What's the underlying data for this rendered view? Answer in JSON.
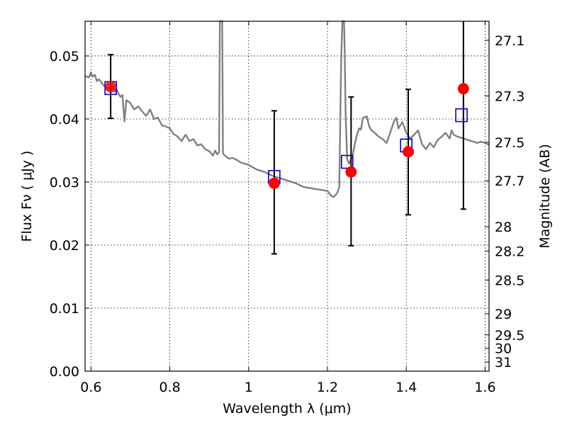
{
  "chart_data": {
    "type": "scatter",
    "xlabel": "Wavelength  λ (μm)",
    "ylabel": "Flux  Fν  ( μJy )",
    "ylabel_right": "Magnitude (AB)",
    "xlim": [
      0.585,
      1.61
    ],
    "ylim": [
      0.0,
      0.0555
    ],
    "grid": true,
    "x_ticks": [
      {
        "value": 0.6,
        "label": "0.6"
      },
      {
        "value": 0.8,
        "label": "0.8"
      },
      {
        "value": 1.0,
        "label": "1"
      },
      {
        "value": 1.2,
        "label": "1.2"
      },
      {
        "value": 1.4,
        "label": "1.4"
      },
      {
        "value": 1.6,
        "label": "1.6"
      }
    ],
    "y_ticks": [
      {
        "value": 0.0,
        "label": "0.00"
      },
      {
        "value": 0.01,
        "label": "0.01"
      },
      {
        "value": 0.02,
        "label": "0.02"
      },
      {
        "value": 0.03,
        "label": "0.03"
      },
      {
        "value": 0.04,
        "label": "0.04"
      },
      {
        "value": 0.05,
        "label": "0.05"
      }
    ],
    "mag_ticks": [
      {
        "mag": 27.1,
        "label": "27.1"
      },
      {
        "mag": 27.3,
        "label": "27.3"
      },
      {
        "mag": 27.5,
        "label": "27.5"
      },
      {
        "mag": 27.7,
        "label": "27.7"
      },
      {
        "mag": 28.0,
        "label": "28"
      },
      {
        "mag": 28.2,
        "label": "28.2"
      },
      {
        "mag": 28.5,
        "label": "28.5"
      },
      {
        "mag": 29.0,
        "label": "29"
      },
      {
        "mag": 29.5,
        "label": "29.5"
      },
      {
        "mag": 30.0,
        "label": "30"
      },
      {
        "mag": 31.0,
        "label": "31"
      }
    ],
    "observed": {
      "x": [
        0.65,
        1.065,
        1.26,
        1.405,
        1.545
      ],
      "y": [
        0.0451,
        0.0298,
        0.0316,
        0.0348,
        0.0448
      ],
      "yerr_low": [
        0.0401,
        0.0186,
        0.0199,
        0.0248,
        0.0257
      ],
      "yerr_high": [
        0.0502,
        0.0413,
        0.0435,
        0.0447,
        0.0555
      ],
      "color": "#ff0000"
    },
    "model_photometry": {
      "x": [
        0.65,
        1.065,
        1.25,
        1.4,
        1.54
      ],
      "y": [
        0.0449,
        0.0308,
        0.0332,
        0.0358,
        0.0406
      ],
      "color": "#0000cc"
    },
    "model_spectrum": {
      "color": "#808080",
      "x": [
        0.585,
        0.595,
        0.6,
        0.605,
        0.61,
        0.615,
        0.62,
        0.63,
        0.64,
        0.645,
        0.65,
        0.655,
        0.66,
        0.665,
        0.67,
        0.675,
        0.68,
        0.685,
        0.69,
        0.7,
        0.71,
        0.72,
        0.73,
        0.74,
        0.75,
        0.76,
        0.77,
        0.78,
        0.79,
        0.8,
        0.81,
        0.82,
        0.83,
        0.84,
        0.85,
        0.86,
        0.87,
        0.88,
        0.89,
        0.9,
        0.91,
        0.915,
        0.92,
        0.925,
        0.927,
        0.929,
        0.931,
        0.933,
        0.935,
        0.94,
        0.95,
        0.96,
        0.97,
        0.98,
        1.0,
        1.02,
        1.04,
        1.06,
        1.08,
        1.1,
        1.12,
        1.14,
        1.16,
        1.18,
        1.19,
        1.2,
        1.21,
        1.215,
        1.22,
        1.225,
        1.23,
        1.235,
        1.238,
        1.24,
        1.242,
        1.244,
        1.246,
        1.25,
        1.255,
        1.26,
        1.265,
        1.27,
        1.275,
        1.28,
        1.285,
        1.29,
        1.3,
        1.305,
        1.31,
        1.32,
        1.33,
        1.34,
        1.35,
        1.36,
        1.37,
        1.375,
        1.38,
        1.39,
        1.4,
        1.41,
        1.42,
        1.43,
        1.44,
        1.45,
        1.46,
        1.47,
        1.48,
        1.49,
        1.5,
        1.51,
        1.515,
        1.52,
        1.53,
        1.54,
        1.55,
        1.56,
        1.57,
        1.58,
        1.59,
        1.6,
        1.61
      ],
      "y": [
        0.0468,
        0.0466,
        0.0474,
        0.0467,
        0.047,
        0.046,
        0.0463,
        0.0455,
        0.0448,
        0.045,
        0.0446,
        0.0452,
        0.0443,
        0.0447,
        0.044,
        0.0435,
        0.0438,
        0.0396,
        0.043,
        0.0425,
        0.0415,
        0.042,
        0.0412,
        0.0405,
        0.0415,
        0.04,
        0.0402,
        0.039,
        0.0388,
        0.0385,
        0.0376,
        0.0372,
        0.0365,
        0.0375,
        0.0365,
        0.0368,
        0.0358,
        0.036,
        0.0352,
        0.0349,
        0.0342,
        0.035,
        0.0344,
        0.0347,
        0.0555,
        0.0555,
        0.0555,
        0.0555,
        0.0345,
        0.0342,
        0.0337,
        0.0338,
        0.0335,
        0.0331,
        0.0327,
        0.032,
        0.0316,
        0.031,
        0.0306,
        0.0302,
        0.0298,
        0.0292,
        0.029,
        0.0288,
        0.0287,
        0.0286,
        0.0278,
        0.0276,
        0.0279,
        0.0283,
        0.0292,
        0.05,
        0.0555,
        0.0555,
        0.0555,
        0.05,
        0.041,
        0.0336,
        0.0329,
        0.0337,
        0.0345,
        0.0362,
        0.0375,
        0.0385,
        0.0383,
        0.0402,
        0.0404,
        0.039,
        0.0383,
        0.0378,
        0.0372,
        0.0368,
        0.0362,
        0.038,
        0.0398,
        0.0402,
        0.0385,
        0.0395,
        0.0378,
        0.0369,
        0.0375,
        0.0382,
        0.036,
        0.0352,
        0.0362,
        0.0355,
        0.0367,
        0.0372,
        0.0378,
        0.0369,
        0.0382,
        0.0375,
        0.0372,
        0.037,
        0.0368,
        0.0366,
        0.0364,
        0.0362,
        0.0364,
        0.0362,
        0.0359
      ]
    }
  }
}
